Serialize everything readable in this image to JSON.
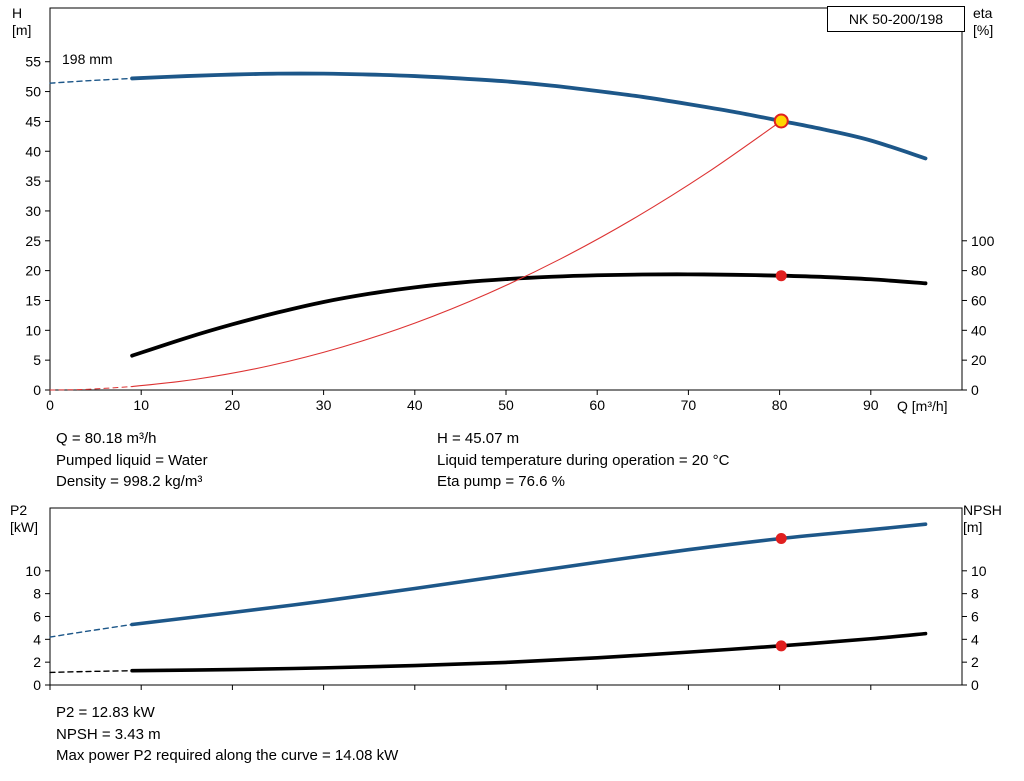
{
  "header": {
    "model_badge": "NK 50-200/198"
  },
  "annotations": {
    "impeller_diameter": "198 mm"
  },
  "info_top": {
    "left": [
      "Q = 80.18 m³/h",
      "Pumped liquid = Water",
      "Density = 998.2 kg/m³"
    ],
    "right": [
      "H = 45.07 m",
      "Liquid temperature during operation = 20 °C",
      "Eta pump = 76.6 %"
    ]
  },
  "info_bottom": [
    "P2 = 12.83 kW",
    "NPSH = 3.43 m",
    "Max power P2 required along the curve = 14.08 kW"
  ],
  "colors": {
    "curve_blue": "#1d5789",
    "curve_black": "#000000",
    "curve_red": "#dd3333",
    "marker_red": "#e01f1f",
    "marker_yellow": "#ffd500"
  },
  "chart_data": [
    {
      "type": "line",
      "name": "hq-eta-chart",
      "title": "NK 50-200/198",
      "xlabel": "Q [m³/h]",
      "ylabel_left": "H\n[m]",
      "ylabel_right": "eta\n[%]",
      "xlim": [
        0,
        100
      ],
      "ylim_left": [
        0,
        64
      ],
      "ylim_right": [
        0,
        256
      ],
      "x_ticks": [
        0,
        10,
        20,
        30,
        40,
        50,
        60,
        70,
        80,
        90
      ],
      "show_x_tick_labels": true,
      "y_ticks_left": [
        0,
        5,
        10,
        15,
        20,
        25,
        30,
        35,
        40,
        45,
        50,
        55
      ],
      "y_ticks_right": [
        0,
        20,
        40,
        60,
        80,
        100
      ],
      "grid": false,
      "series": [
        {
          "name": "head-curve",
          "axis": "left",
          "color": "#1d5789",
          "width": 3.8,
          "segments": [
            {
              "dash": true,
              "width": 1.4,
              "points": [
                [
                  0,
                  51.4
                ],
                [
                  4,
                  51.8
                ],
                [
                  9,
                  52.2
                ]
              ]
            },
            {
              "dash": false,
              "points": [
                [
                  9,
                  52.2
                ],
                [
                  15,
                  52.6
                ],
                [
                  20,
                  52.85
                ],
                [
                  25,
                  53.0
                ],
                [
                  30,
                  53.0
                ],
                [
                  35,
                  52.85
                ],
                [
                  40,
                  52.6
                ],
                [
                  45,
                  52.2
                ],
                [
                  50,
                  51.7
                ],
                [
                  55,
                  51.0
                ],
                [
                  60,
                  50.1
                ],
                [
                  65,
                  49.1
                ],
                [
                  70,
                  47.9
                ],
                [
                  75,
                  46.6
                ],
                [
                  80.18,
                  45.07
                ],
                [
                  85,
                  43.6
                ],
                [
                  90,
                  41.8
                ],
                [
                  96,
                  38.8
                ]
              ]
            }
          ]
        },
        {
          "name": "eta-curve",
          "axis": "right",
          "color": "#000000",
          "width": 3.8,
          "segments": [
            {
              "dash": false,
              "points": [
                [
                  9,
                  23
                ],
                [
                  15,
                  35
                ],
                [
                  20,
                  44
                ],
                [
                  25,
                  52
                ],
                [
                  30,
                  59
                ],
                [
                  35,
                  64.5
                ],
                [
                  40,
                  68.8
                ],
                [
                  45,
                  72
                ],
                [
                  50,
                  74.3
                ],
                [
                  55,
                  75.9
                ],
                [
                  60,
                  76.9
                ],
                [
                  65,
                  77.4
                ],
                [
                  70,
                  77.5
                ],
                [
                  75,
                  77.2
                ],
                [
                  80.18,
                  76.6
                ],
                [
                  85,
                  75.7
                ],
                [
                  90,
                  74.2
                ],
                [
                  96,
                  71.5
                ]
              ]
            }
          ]
        },
        {
          "name": "system-curve",
          "axis": "left",
          "color": "#dd3333",
          "width": 1.1,
          "segments": [
            {
              "dash": true,
              "width": 1,
              "points": [
                [
                  0,
                  0
                ],
                [
                  4,
                  0.11
                ],
                [
                  9,
                  0.57
                ]
              ]
            },
            {
              "dash": false,
              "points": [
                [
                  9,
                  0.57
                ],
                [
                  16,
                  1.8
                ],
                [
                  24,
                  4.04
                ],
                [
                  32,
                  7.18
                ],
                [
                  40,
                  11.21
                ],
                [
                  48,
                  16.15
                ],
                [
                  56,
                  21.98
                ],
                [
                  64,
                  28.71
                ],
                [
                  72,
                  36.34
                ],
                [
                  80.18,
                  45.07
                ]
              ]
            }
          ]
        }
      ],
      "markers": [
        {
          "name": "duty-point-eta",
          "axis": "right",
          "x": 80.18,
          "y": 76.6,
          "r": 5.5,
          "fill": "#e01f1f"
        },
        {
          "name": "duty-point-head",
          "axis": "left",
          "x": 80.18,
          "y": 45.07,
          "r": 6.5,
          "fill": "#ffd500",
          "stroke": "#e01f1f",
          "stroke_width": 2
        }
      ]
    },
    {
      "type": "line",
      "name": "p2-npsh-chart",
      "xlabel": "",
      "ylabel_left": "P2\n[kW]",
      "ylabel_right": "NPSH\n[m]",
      "xlim": [
        0,
        100
      ],
      "ylim_left": [
        0,
        15.5
      ],
      "ylim_right": [
        0,
        15.5
      ],
      "x_ticks": [
        0,
        10,
        20,
        30,
        40,
        50,
        60,
        70,
        80,
        90
      ],
      "show_x_tick_labels": false,
      "y_ticks_left": [
        0,
        2,
        4,
        6,
        8,
        10
      ],
      "y_ticks_right": [
        0,
        2,
        4,
        6,
        8,
        10
      ],
      "grid": false,
      "series": [
        {
          "name": "p2-curve",
          "axis": "left",
          "color": "#1d5789",
          "width": 3.6,
          "segments": [
            {
              "dash": true,
              "width": 1.4,
              "points": [
                [
                  0,
                  4.2
                ],
                [
                  4,
                  4.7
                ],
                [
                  9,
                  5.3
                ]
              ]
            },
            {
              "dash": false,
              "points": [
                [
                  9,
                  5.3
                ],
                [
                  20,
                  6.35
                ],
                [
                  30,
                  7.35
                ],
                [
                  40,
                  8.45
                ],
                [
                  50,
                  9.6
                ],
                [
                  60,
                  10.75
                ],
                [
                  70,
                  11.85
                ],
                [
                  80.18,
                  12.83
                ],
                [
                  90,
                  13.6
                ],
                [
                  96,
                  14.08
                ]
              ]
            }
          ]
        },
        {
          "name": "npsh-curve",
          "axis": "left",
          "color": "#000000",
          "width": 3.6,
          "segments": [
            {
              "dash": true,
              "width": 1.4,
              "points": [
                [
                  0,
                  1.1
                ],
                [
                  4,
                  1.18
                ],
                [
                  9,
                  1.25
                ]
              ]
            },
            {
              "dash": false,
              "points": [
                [
                  9,
                  1.25
                ],
                [
                  20,
                  1.35
                ],
                [
                  30,
                  1.5
                ],
                [
                  40,
                  1.7
                ],
                [
                  50,
                  1.98
                ],
                [
                  60,
                  2.38
                ],
                [
                  70,
                  2.88
                ],
                [
                  80.18,
                  3.43
                ],
                [
                  90,
                  4.05
                ],
                [
                  96,
                  4.5
                ]
              ]
            }
          ]
        }
      ],
      "markers": [
        {
          "name": "duty-point-p2",
          "axis": "left",
          "x": 80.18,
          "y": 12.83,
          "r": 5.5,
          "fill": "#e01f1f"
        },
        {
          "name": "duty-point-npsh",
          "axis": "left",
          "x": 80.18,
          "y": 3.43,
          "r": 5.5,
          "fill": "#e01f1f"
        }
      ]
    }
  ]
}
